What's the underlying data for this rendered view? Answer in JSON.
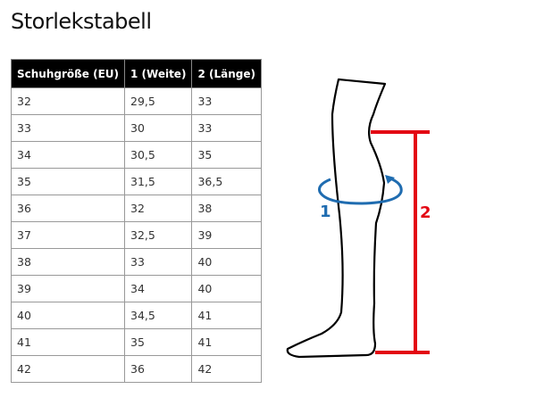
{
  "title": "Storlekstabell",
  "table": {
    "headers": [
      "Schuhgröße (EU)",
      "1 (Weite)",
      "2 (Länge)"
    ],
    "rows": [
      [
        "32",
        "29,5",
        "33"
      ],
      [
        "33",
        "30",
        "33"
      ],
      [
        "34",
        "30,5",
        "35"
      ],
      [
        "35",
        "31,5",
        "36,5"
      ],
      [
        "36",
        "32",
        "38"
      ],
      [
        "37",
        "32,5",
        "39"
      ],
      [
        "38",
        "33",
        "40"
      ],
      [
        "39",
        "34",
        "40"
      ],
      [
        "40",
        "34,5",
        "41"
      ],
      [
        "41",
        "35",
        "41"
      ],
      [
        "42",
        "36",
        "42"
      ]
    ]
  },
  "diagram": {
    "label_width": "1",
    "label_length": "2",
    "color_width": "#1f6cb0",
    "color_length": "#e30613"
  }
}
